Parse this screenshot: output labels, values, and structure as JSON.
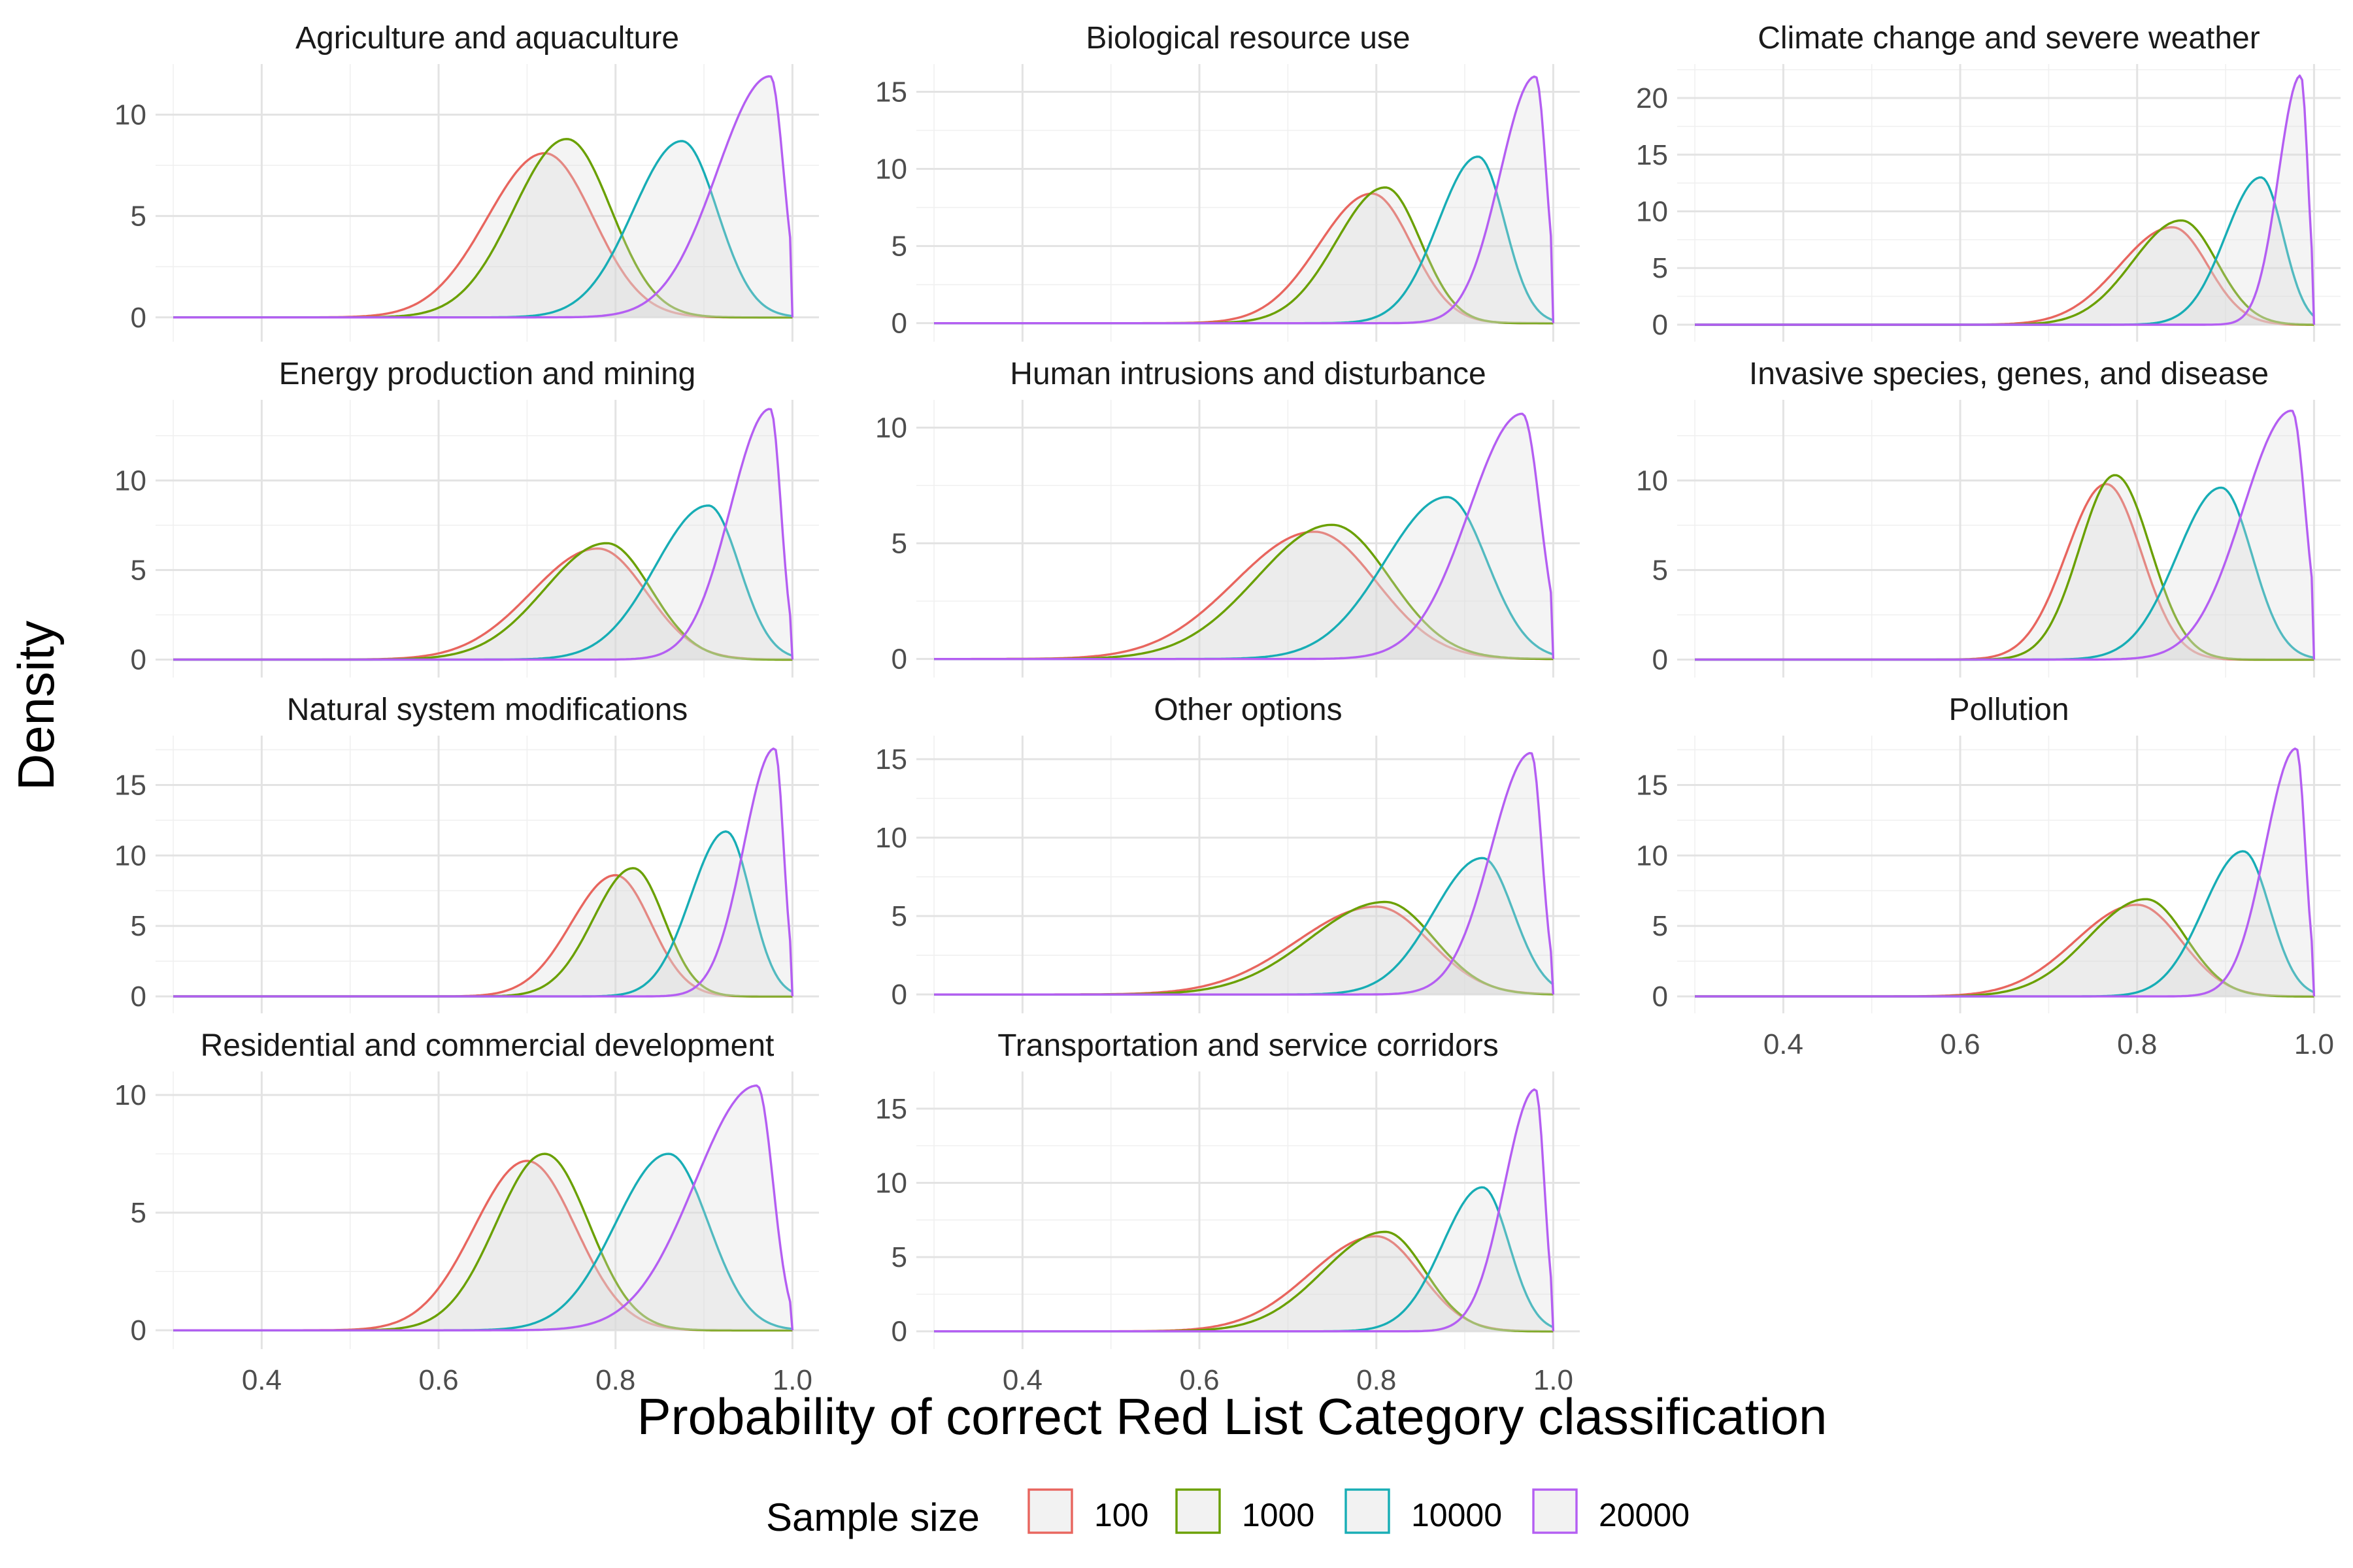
{
  "chart_data": {
    "type": "area",
    "facet_layout": {
      "columns": 3
    },
    "xlabel": "Probability of correct Red List Category classification",
    "ylabel": "Density",
    "xlim": [
      0.28,
      1.03
    ],
    "x_ticks": [
      0.4,
      0.6,
      0.8,
      1.0
    ],
    "x_tick_labels": [
      "0.4",
      "0.6",
      "0.8",
      "1.0"
    ],
    "grid": true,
    "legend": {
      "title": "Sample size",
      "position": "bottom",
      "entries": [
        {
          "label": "100",
          "color": "#E8655E"
        },
        {
          "label": "1000",
          "color": "#6AA000"
        },
        {
          "label": "10000",
          "color": "#17ADB5"
        },
        {
          "label": "20000",
          "color": "#B45EF2"
        }
      ]
    },
    "panels": [
      {
        "title": "Agriculture and aquaculture",
        "ylim": [
          -1.2,
          12.5
        ],
        "y_ticks": [
          0,
          5,
          10
        ],
        "series": [
          {
            "name": "100",
            "peak_x": 0.72,
            "peak_y": 8.1,
            "sd_left": 0.065,
            "sd_right": 0.055,
            "upper_limit": 1.0
          },
          {
            "name": "1000",
            "peak_x": 0.745,
            "peak_y": 8.8,
            "sd_left": 0.06,
            "sd_right": 0.05,
            "upper_limit": 1.0
          },
          {
            "name": "10000",
            "peak_x": 0.875,
            "peak_y": 8.7,
            "sd_left": 0.055,
            "sd_right": 0.04,
            "upper_limit": 1.0
          },
          {
            "name": "20000",
            "peak_x": 0.975,
            "peak_y": 11.9,
            "sd_left": 0.06,
            "sd_right": 0.015,
            "upper_limit": 0.998
          }
        ]
      },
      {
        "title": "Biological resource use",
        "ylim": [
          -1.2,
          16.8
        ],
        "y_ticks": [
          0,
          5,
          10,
          15
        ],
        "series": [
          {
            "name": "100",
            "peak_x": 0.795,
            "peak_y": 8.4,
            "sd_left": 0.06,
            "sd_right": 0.045,
            "upper_limit": 1.0
          },
          {
            "name": "1000",
            "peak_x": 0.81,
            "peak_y": 8.8,
            "sd_left": 0.055,
            "sd_right": 0.04,
            "upper_limit": 1.0
          },
          {
            "name": "10000",
            "peak_x": 0.915,
            "peak_y": 10.8,
            "sd_left": 0.045,
            "sd_right": 0.03,
            "upper_limit": 1.0
          },
          {
            "name": "20000",
            "peak_x": 0.98,
            "peak_y": 16.0,
            "sd_left": 0.04,
            "sd_right": 0.012,
            "upper_limit": 0.998
          }
        ]
      },
      {
        "title": "Climate change and severe weather",
        "ylim": [
          -1.5,
          23.0
        ],
        "y_ticks": [
          0,
          5,
          10,
          15,
          20
        ],
        "series": [
          {
            "name": "100",
            "peak_x": 0.84,
            "peak_y": 8.6,
            "sd_left": 0.06,
            "sd_right": 0.04,
            "upper_limit": 1.0
          },
          {
            "name": "1000",
            "peak_x": 0.85,
            "peak_y": 9.2,
            "sd_left": 0.055,
            "sd_right": 0.04,
            "upper_limit": 1.0
          },
          {
            "name": "10000",
            "peak_x": 0.94,
            "peak_y": 13.0,
            "sd_left": 0.04,
            "sd_right": 0.025,
            "upper_limit": 1.0
          },
          {
            "name": "20000",
            "peak_x": 0.985,
            "peak_y": 22.0,
            "sd_left": 0.025,
            "sd_right": 0.008,
            "upper_limit": 0.998
          }
        ]
      },
      {
        "title": "Energy production and mining",
        "ylim": [
          -1.0,
          14.5
        ],
        "y_ticks": [
          0,
          5,
          10
        ],
        "series": [
          {
            "name": "100",
            "peak_x": 0.78,
            "peak_y": 6.2,
            "sd_left": 0.075,
            "sd_right": 0.055,
            "upper_limit": 1.0
          },
          {
            "name": "1000",
            "peak_x": 0.79,
            "peak_y": 6.5,
            "sd_left": 0.07,
            "sd_right": 0.05,
            "upper_limit": 1.0
          },
          {
            "name": "10000",
            "peak_x": 0.905,
            "peak_y": 8.6,
            "sd_left": 0.06,
            "sd_right": 0.035,
            "upper_limit": 1.0
          },
          {
            "name": "20000",
            "peak_x": 0.975,
            "peak_y": 14.0,
            "sd_left": 0.045,
            "sd_right": 0.012,
            "upper_limit": 0.998
          }
        ]
      },
      {
        "title": "Human intrusions and disturbance",
        "ylim": [
          -0.8,
          11.2
        ],
        "y_ticks": [
          0,
          5,
          10
        ],
        "series": [
          {
            "name": "100",
            "peak_x": 0.73,
            "peak_y": 5.5,
            "sd_left": 0.09,
            "sd_right": 0.07,
            "upper_limit": 1.0
          },
          {
            "name": "1000",
            "peak_x": 0.75,
            "peak_y": 5.8,
            "sd_left": 0.085,
            "sd_right": 0.065,
            "upper_limit": 1.0
          },
          {
            "name": "10000",
            "peak_x": 0.88,
            "peak_y": 7.0,
            "sd_left": 0.07,
            "sd_right": 0.045,
            "upper_limit": 1.0
          },
          {
            "name": "20000",
            "peak_x": 0.965,
            "peak_y": 10.6,
            "sd_left": 0.06,
            "sd_right": 0.02,
            "upper_limit": 0.998
          }
        ]
      },
      {
        "title": "Invasive species, genes, and disease",
        "ylim": [
          -1.0,
          14.5
        ],
        "y_ticks": [
          0,
          5,
          10
        ],
        "series": [
          {
            "name": "100",
            "peak_x": 0.765,
            "peak_y": 9.8,
            "sd_left": 0.045,
            "sd_right": 0.04,
            "upper_limit": 1.0
          },
          {
            "name": "1000",
            "peak_x": 0.775,
            "peak_y": 10.3,
            "sd_left": 0.04,
            "sd_right": 0.04,
            "upper_limit": 1.0
          },
          {
            "name": "10000",
            "peak_x": 0.895,
            "peak_y": 9.6,
            "sd_left": 0.05,
            "sd_right": 0.035,
            "upper_limit": 1.0
          },
          {
            "name": "20000",
            "peak_x": 0.975,
            "peak_y": 13.9,
            "sd_left": 0.055,
            "sd_right": 0.015,
            "upper_limit": 0.998
          }
        ]
      },
      {
        "title": "Natural system modifications",
        "ylim": [
          -1.2,
          18.5
        ],
        "y_ticks": [
          0,
          5,
          10,
          15
        ],
        "series": [
          {
            "name": "100",
            "peak_x": 0.8,
            "peak_y": 8.6,
            "sd_left": 0.05,
            "sd_right": 0.04,
            "upper_limit": 1.0
          },
          {
            "name": "1000",
            "peak_x": 0.82,
            "peak_y": 9.1,
            "sd_left": 0.045,
            "sd_right": 0.035,
            "upper_limit": 1.0
          },
          {
            "name": "10000",
            "peak_x": 0.925,
            "peak_y": 11.7,
            "sd_left": 0.04,
            "sd_right": 0.028,
            "upper_limit": 1.0
          },
          {
            "name": "20000",
            "peak_x": 0.98,
            "peak_y": 17.6,
            "sd_left": 0.035,
            "sd_right": 0.01,
            "upper_limit": 0.998
          }
        ]
      },
      {
        "title": "Other options",
        "ylim": [
          -1.2,
          16.5
        ],
        "y_ticks": [
          0,
          5,
          10,
          15
        ],
        "series": [
          {
            "name": "100",
            "peak_x": 0.8,
            "peak_y": 5.6,
            "sd_left": 0.09,
            "sd_right": 0.06,
            "upper_limit": 1.0
          },
          {
            "name": "1000",
            "peak_x": 0.81,
            "peak_y": 5.9,
            "sd_left": 0.085,
            "sd_right": 0.055,
            "upper_limit": 1.0
          },
          {
            "name": "10000",
            "peak_x": 0.92,
            "peak_y": 8.7,
            "sd_left": 0.055,
            "sd_right": 0.035,
            "upper_limit": 1.0
          },
          {
            "name": "20000",
            "peak_x": 0.975,
            "peak_y": 15.4,
            "sd_left": 0.045,
            "sd_right": 0.012,
            "upper_limit": 0.998
          }
        ]
      },
      {
        "title": "Pollution",
        "ylim": [
          -1.2,
          18.5
        ],
        "y_ticks": [
          0,
          5,
          10,
          15
        ],
        "series": [
          {
            "name": "100",
            "peak_x": 0.8,
            "peak_y": 6.5,
            "sd_left": 0.07,
            "sd_right": 0.05,
            "upper_limit": 1.0
          },
          {
            "name": "1000",
            "peak_x": 0.81,
            "peak_y": 6.9,
            "sd_left": 0.065,
            "sd_right": 0.045,
            "upper_limit": 1.0
          },
          {
            "name": "10000",
            "peak_x": 0.92,
            "peak_y": 10.3,
            "sd_left": 0.045,
            "sd_right": 0.03,
            "upper_limit": 1.0
          },
          {
            "name": "20000",
            "peak_x": 0.98,
            "peak_y": 17.6,
            "sd_left": 0.035,
            "sd_right": 0.01,
            "upper_limit": 0.998
          }
        ]
      },
      {
        "title": "Residential and commercial development",
        "ylim": [
          -0.8,
          11.0
        ],
        "y_ticks": [
          0,
          5,
          10
        ],
        "series": [
          {
            "name": "100",
            "peak_x": 0.7,
            "peak_y": 7.2,
            "sd_left": 0.06,
            "sd_right": 0.055,
            "upper_limit": 1.0
          },
          {
            "name": "1000",
            "peak_x": 0.72,
            "peak_y": 7.5,
            "sd_left": 0.055,
            "sd_right": 0.05,
            "upper_limit": 1.0
          },
          {
            "name": "10000",
            "peak_x": 0.86,
            "peak_y": 7.5,
            "sd_left": 0.06,
            "sd_right": 0.045,
            "upper_limit": 1.0
          },
          {
            "name": "20000",
            "peak_x": 0.96,
            "peak_y": 10.4,
            "sd_left": 0.07,
            "sd_right": 0.018,
            "upper_limit": 0.998
          }
        ]
      },
      {
        "title": "Transportation and service corridors",
        "ylim": [
          -1.2,
          17.5
        ],
        "y_ticks": [
          0,
          5,
          10,
          15
        ],
        "series": [
          {
            "name": "100",
            "peak_x": 0.8,
            "peak_y": 6.4,
            "sd_left": 0.075,
            "sd_right": 0.05,
            "upper_limit": 1.0
          },
          {
            "name": "1000",
            "peak_x": 0.81,
            "peak_y": 6.7,
            "sd_left": 0.07,
            "sd_right": 0.045,
            "upper_limit": 1.0
          },
          {
            "name": "10000",
            "peak_x": 0.92,
            "peak_y": 9.7,
            "sd_left": 0.045,
            "sd_right": 0.03,
            "upper_limit": 1.0
          },
          {
            "name": "20000",
            "peak_x": 0.98,
            "peak_y": 16.3,
            "sd_left": 0.035,
            "sd_right": 0.01,
            "upper_limit": 0.998
          }
        ]
      }
    ]
  }
}
